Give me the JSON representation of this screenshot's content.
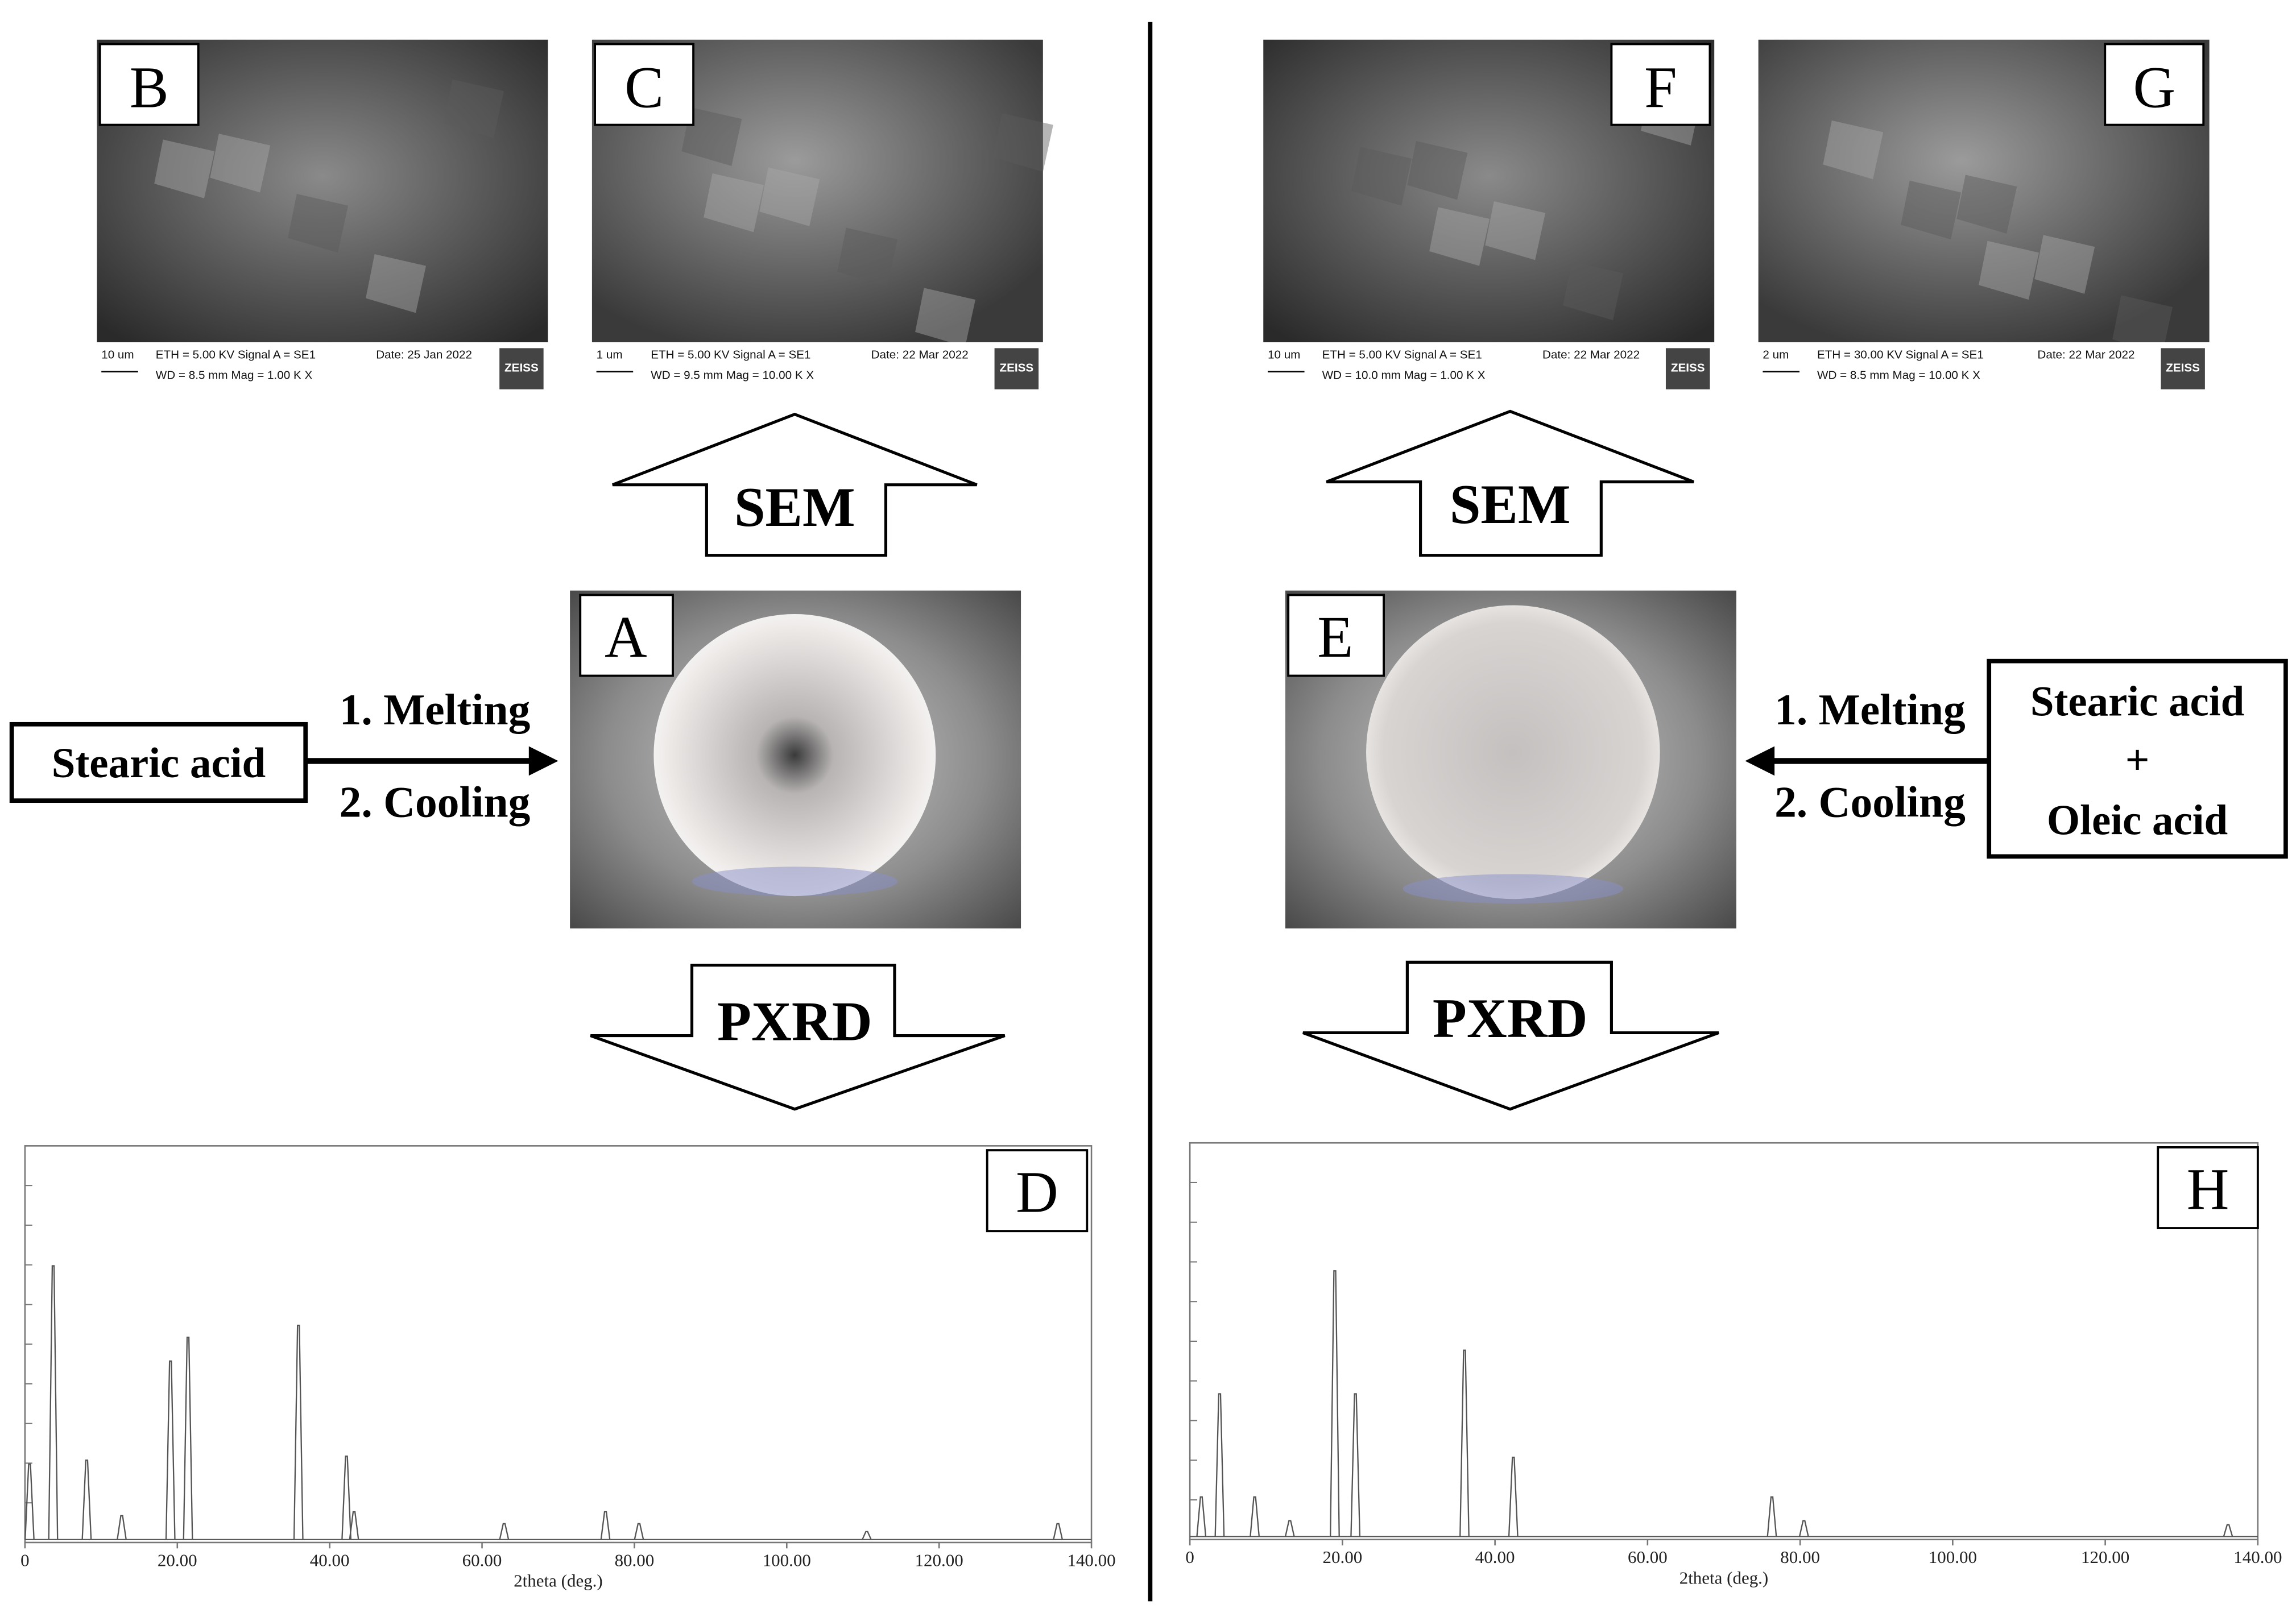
{
  "sem_images": [
    {
      "label": "B",
      "scale": "10 um",
      "line1": "ETH = 5.00 KV  Signal A = SE1",
      "date": "Date: 25 Jan 2022",
      "line2": "WD = 8.5 mm    Mag = 1.00 K X",
      "brand": "ZEISS"
    },
    {
      "label": "C",
      "scale": "1 um",
      "line1": "ETH = 5.00 KV  Signal A = SE1",
      "date": "Date: 22 Mar 2022",
      "line2": "WD = 9.5 mm    Mag = 10.00 K X",
      "brand": "ZEISS"
    },
    {
      "label": "F",
      "scale": "10 um",
      "line1": "ETH = 5.00 KV  Signal A = SE1",
      "date": "Date: 22 Mar 2022",
      "line2": "WD = 10.0 mm   Mag = 1.00 K X",
      "brand": "ZEISS"
    },
    {
      "label": "G",
      "scale": "2 um",
      "line1": "ETH = 30.00 KV      Signal A = SE1",
      "date": "Date: 22 Mar 2022",
      "line2": "WD = 8.5 mm    Mag = 10.00 K X",
      "brand": "ZEISS"
    }
  ],
  "left": {
    "photo_label": "A",
    "input": [
      "Stearic acid"
    ],
    "step1": "1. Melting",
    "step2": "2. Cooling",
    "up": "SEM",
    "down": "PXRD"
  },
  "right": {
    "photo_label": "E",
    "input": [
      "Stearic acid",
      "+",
      "Oleic acid"
    ],
    "step1": "1. Melting",
    "step2": "2. Cooling",
    "up": "SEM",
    "down": "PXRD"
  },
  "pxrd": [
    {
      "label": "D",
      "xlabel": "2theta (deg.)",
      "xlim": [
        0,
        140
      ],
      "xticks": [
        0,
        {
          "value": 20,
          "label": "20.00"
        },
        {
          "value": 40,
          "label": "40.00"
        },
        {
          "value": 60,
          "label": "60.00"
        },
        {
          "value": 80,
          "label": "80.00"
        },
        {
          "value": 100,
          "label": "100.00"
        },
        {
          "value": 120,
          "label": "120.00"
        },
        {
          "value": 140,
          "label": "140.00"
        }
      ],
      "peaks": [
        {
          "x": 0.6,
          "height": 19
        },
        {
          "x": 3.7,
          "height": 69
        },
        {
          "x": 8.1,
          "height": 20
        },
        {
          "x": 12.7,
          "height": 6
        },
        {
          "x": 19.1,
          "height": 45
        },
        {
          "x": 21.4,
          "height": 51
        },
        {
          "x": 35.9,
          "height": 54
        },
        {
          "x": 42.2,
          "height": 21
        },
        {
          "x": 43.2,
          "height": 7
        },
        {
          "x": 62.9,
          "height": 4
        },
        {
          "x": 76.2,
          "height": 7
        },
        {
          "x": 80.6,
          "height": 4
        },
        {
          "x": 110.5,
          "height": 2
        },
        {
          "x": 135.6,
          "height": 4
        }
      ]
    },
    {
      "label": "H",
      "xlabel": "2theta (deg.)",
      "xlim": [
        0,
        140
      ],
      "xticks": [
        0,
        {
          "value": 20,
          "label": "20.00"
        },
        {
          "value": 40,
          "label": "40.00"
        },
        {
          "value": 60,
          "label": "60.00"
        },
        {
          "value": 80,
          "label": "80.00"
        },
        {
          "value": 100,
          "label": "100.00"
        },
        {
          "value": 120,
          "label": "120.00"
        },
        {
          "value": 140,
          "label": "140.00"
        }
      ],
      "peaks": [
        {
          "x": 1.5,
          "height": 10
        },
        {
          "x": 3.9,
          "height": 36
        },
        {
          "x": 8.5,
          "height": 10
        },
        {
          "x": 13.1,
          "height": 4
        },
        {
          "x": 19.0,
          "height": 67
        },
        {
          "x": 21.7,
          "height": 36
        },
        {
          "x": 36.0,
          "height": 47
        },
        {
          "x": 42.4,
          "height": 20
        },
        {
          "x": 76.3,
          "height": 10
        },
        {
          "x": 80.5,
          "height": 4
        },
        {
          "x": 136.1,
          "height": 3
        }
      ]
    }
  ]
}
